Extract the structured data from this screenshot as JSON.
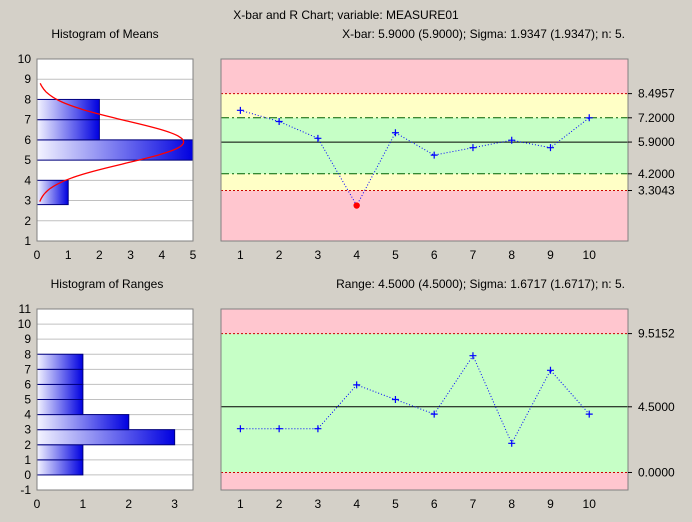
{
  "header": {
    "title": "X-bar and R Chart; variable:  MEASURE01",
    "xbar_stats": "X-bar: 5.9000 (5.9000); Sigma: 1.9347 (1.9347); n: 5.",
    "range_stats": "Range: 4.5000 (4.5000); Sigma: 1.6717 (1.6717); n: 5."
  },
  "colors": {
    "background": "#d4d0c8",
    "zone_red": "#ffc6cf",
    "zone_yellow": "#ffffc6",
    "zone_green": "#c6ffc6",
    "histogram_bar_light": "#f4f4ff",
    "histogram_bar_dark": "#0000e0",
    "normal_curve": "#ff0000",
    "series_line": "#0000ff",
    "outlier_point": "#ff0000",
    "limit_line": "#cc0000",
    "center_line": "#000000"
  },
  "chart_data": [
    {
      "id": "hist_means",
      "type": "bar",
      "orientation": "horizontal",
      "title": "Histogram of Means",
      "categories": [
        3,
        5,
        6,
        7
      ],
      "values": [
        1,
        5,
        2,
        2
      ],
      "bins": [
        {
          "from": 2.8,
          "to": 4.0,
          "count": 1
        },
        {
          "from": 5.0,
          "to": 6.0,
          "count": 5
        },
        {
          "from": 6.0,
          "to": 7.0,
          "count": 2
        },
        {
          "from": 7.0,
          "to": 8.0,
          "count": 2
        }
      ],
      "normal_curve": {
        "mean": 5.9,
        "peak_count": 4.7
      },
      "xlim": [
        0,
        5
      ],
      "ylim": [
        1,
        10
      ],
      "x_ticks": [
        "0",
        "1",
        "2",
        "3",
        "4",
        "5"
      ],
      "y_ticks": [
        "1",
        "2",
        "3",
        "4",
        "5",
        "6",
        "7",
        "8",
        "9",
        "10"
      ]
    },
    {
      "id": "xbar_chart",
      "type": "line",
      "title": "X-bar: 5.9000 (5.9000); Sigma: 1.9347 (1.9347); n: 5.",
      "x": [
        1,
        2,
        3,
        4,
        5,
        6,
        7,
        8,
        9,
        10
      ],
      "values": [
        7.6,
        7.0,
        6.1,
        2.5,
        6.4,
        5.2,
        5.6,
        6.0,
        5.6,
        7.2
      ],
      "out_of_control": [
        4
      ],
      "center": 5.9,
      "ucl": 8.4957,
      "lcl": 3.3043,
      "warning_upper": 7.2,
      "warning_lower": 4.2,
      "right_labels": [
        "8.4957",
        "7.2000",
        "5.9000",
        "4.2000",
        "3.3043"
      ],
      "ylim": [
        0.6,
        10.35
      ],
      "x_ticks": [
        "1",
        "2",
        "3",
        "4",
        "5",
        "6",
        "7",
        "8",
        "9",
        "10"
      ]
    },
    {
      "id": "hist_ranges",
      "type": "bar",
      "orientation": "horizontal",
      "title": "Histogram of Ranges",
      "categories": [
        "0-1",
        "1-2",
        "2-3",
        "3-4",
        "4-5",
        "5-6",
        "6-7",
        "7-8"
      ],
      "values": [
        1,
        1,
        3,
        2,
        1,
        1,
        1,
        1
      ],
      "bins": [
        {
          "from": 0,
          "to": 1,
          "count": 1
        },
        {
          "from": 1,
          "to": 2,
          "count": 1
        },
        {
          "from": 2,
          "to": 3,
          "count": 3
        },
        {
          "from": 3,
          "to": 4,
          "count": 2
        },
        {
          "from": 4,
          "to": 5,
          "count": 1
        },
        {
          "from": 5,
          "to": 6,
          "count": 1
        },
        {
          "from": 6,
          "to": 7,
          "count": 1
        },
        {
          "from": 7,
          "to": 8,
          "count": 1
        }
      ],
      "xlim": [
        0,
        3.4
      ],
      "ylim": [
        -1,
        11
      ],
      "x_ticks": [
        "0",
        "1",
        "2",
        "3"
      ],
      "y_ticks": [
        "-1",
        "0",
        "1",
        "2",
        "3",
        "4",
        "5",
        "6",
        "7",
        "8",
        "9",
        "10",
        "11"
      ]
    },
    {
      "id": "range_chart",
      "type": "line",
      "title": "Range: 4.5000 (4.5000); Sigma: 1.6717 (1.6717); n: 5.",
      "x": [
        1,
        2,
        3,
        4,
        5,
        6,
        7,
        8,
        9,
        10
      ],
      "values": [
        3,
        3,
        3,
        6,
        5,
        4,
        8,
        2,
        7,
        4
      ],
      "center": 4.5,
      "ucl": 9.5152,
      "lcl": 0.0,
      "right_labels": [
        "9.5152",
        "4.5000",
        "0.0000"
      ],
      "ylim": [
        -1.2,
        11.2
      ],
      "x_ticks": [
        "1",
        "2",
        "3",
        "4",
        "5",
        "6",
        "7",
        "8",
        "9",
        "10"
      ]
    }
  ]
}
